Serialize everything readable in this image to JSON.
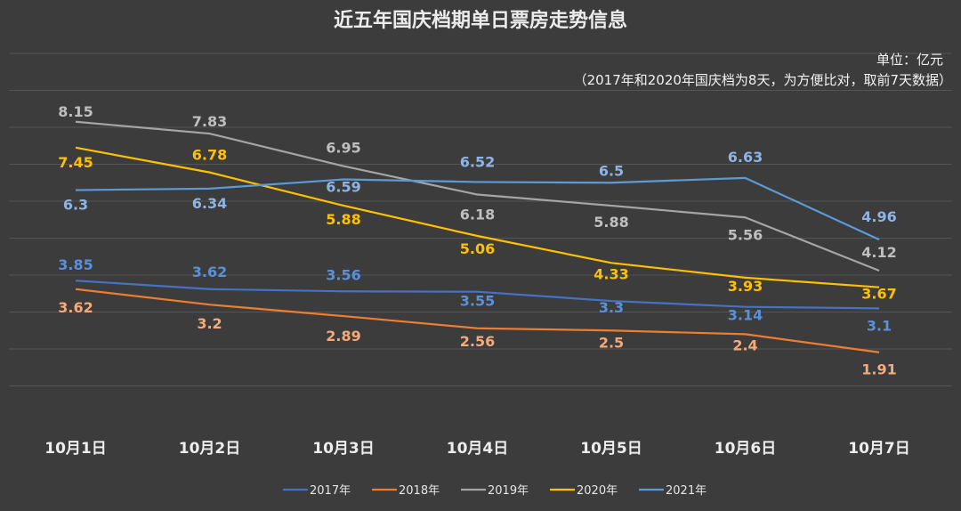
{
  "chart_data": {
    "type": "line",
    "title": "近五年国庆档期单日票房走势信息",
    "unit_note": "单位：亿元",
    "footnote": "（2017年和2020年国庆档为8天，为方便比对，取前7天数据）",
    "categories": [
      "10月1日",
      "10月2日",
      "10月3日",
      "10月4日",
      "10月5日",
      "10月6日",
      "10月7日"
    ],
    "ylim": [
      0,
      10
    ],
    "grid": true,
    "legend_position": "bottom",
    "series": [
      {
        "name": "2017年",
        "color": "#4472c4",
        "label_color": "#5b8fd8",
        "values": [
          3.85,
          3.62,
          3.56,
          3.55,
          3.3,
          3.14,
          3.1
        ],
        "labels": [
          "3.85",
          "3.62",
          "3.56",
          "3.55",
          "3.3",
          "3.14",
          "3.1"
        ]
      },
      {
        "name": "2018年",
        "color": "#ed7d31",
        "label_color": "#f4a97a",
        "values": [
          3.62,
          3.2,
          2.89,
          2.56,
          2.5,
          2.4,
          1.91
        ],
        "labels": [
          "3.62",
          "3.2",
          "2.89",
          "2.56",
          "2.5",
          "2.4",
          "1.91"
        ]
      },
      {
        "name": "2019年",
        "color": "#a5a5a5",
        "label_color": "#bfbfbf",
        "values": [
          8.15,
          7.83,
          6.95,
          6.18,
          5.88,
          5.56,
          4.12
        ],
        "labels": [
          "8.15",
          "7.83",
          "6.95",
          "6.18",
          "5.88",
          "5.56",
          "4.12"
        ]
      },
      {
        "name": "2020年",
        "color": "#ffc000",
        "label_color": "#ffc000",
        "values": [
          7.45,
          6.78,
          5.88,
          5.06,
          4.33,
          3.93,
          3.67
        ],
        "labels": [
          "7.45",
          "6.78",
          "5.88",
          "5.06",
          "4.33",
          "3.93",
          "3.67"
        ]
      },
      {
        "name": "2021年",
        "color": "#5b9bd5",
        "label_color": "#8eb4e3",
        "values": [
          6.3,
          6.34,
          6.59,
          6.52,
          6.5,
          6.63,
          4.96
        ],
        "labels": [
          "6.3",
          "6.34",
          "6.59",
          "6.52",
          "6.5",
          "6.63",
          "4.96"
        ]
      }
    ]
  }
}
